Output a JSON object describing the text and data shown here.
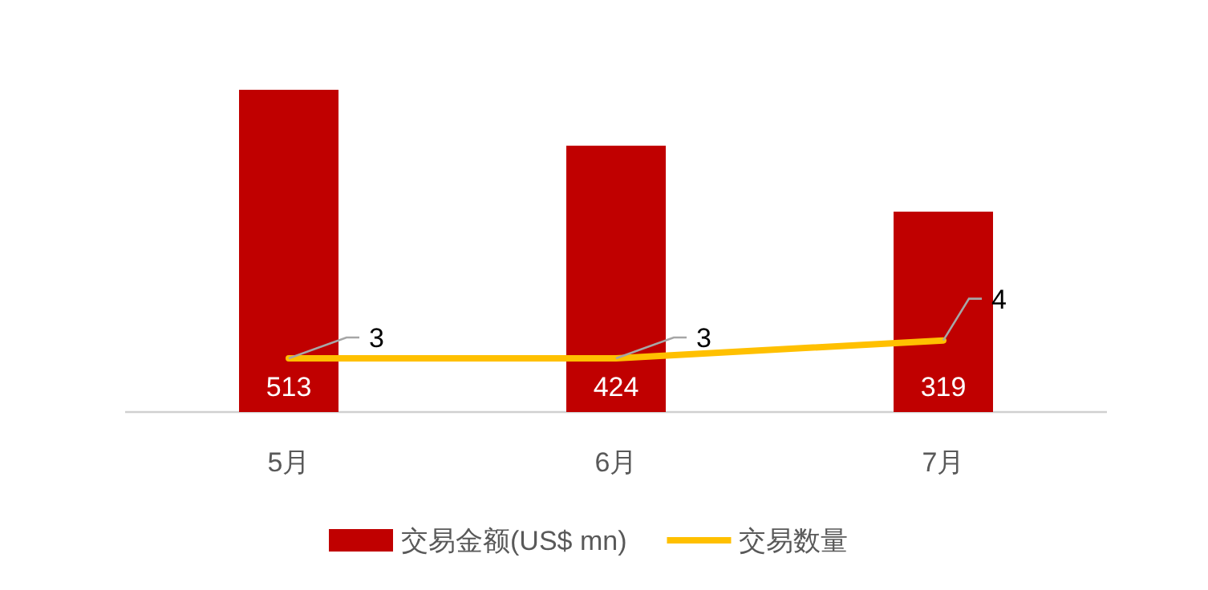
{
  "chart_data": {
    "type": "bar",
    "categories": [
      "5月",
      "6月",
      "7月"
    ],
    "series": [
      {
        "name": "交易金额(US$ mn)",
        "color": "#c00000",
        "values": [
          513,
          424,
          319
        ]
      },
      {
        "name": "交易数量",
        "type": "line",
        "axis": "y2",
        "color": "#ffc000",
        "values": [
          3,
          3,
          4
        ]
      }
    ],
    "data_labels": true,
    "legend": "bottom",
    "grid": false
  }
}
